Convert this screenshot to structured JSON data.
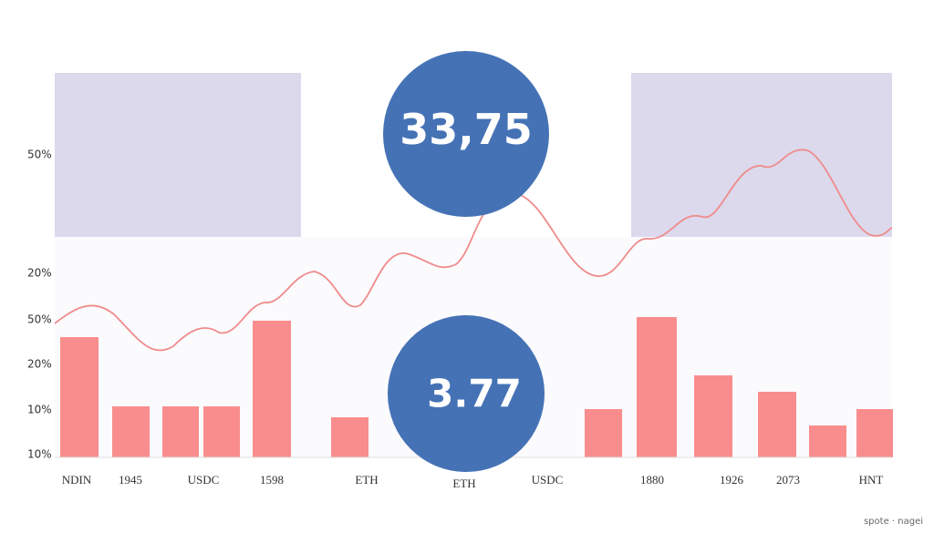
{
  "y_labels": [
    "50%",
    "20%",
    "50%",
    "20%",
    "10%",
    "10%"
  ],
  "x_labels": [
    "NDIN",
    "1945",
    "USDC",
    "1598",
    "ETH",
    "ETH",
    "USDC",
    "1880",
    "1926",
    "2073",
    "HNT"
  ],
  "badges": [
    "33,75",
    "3.77"
  ],
  "footer": "spote · nagei"
}
